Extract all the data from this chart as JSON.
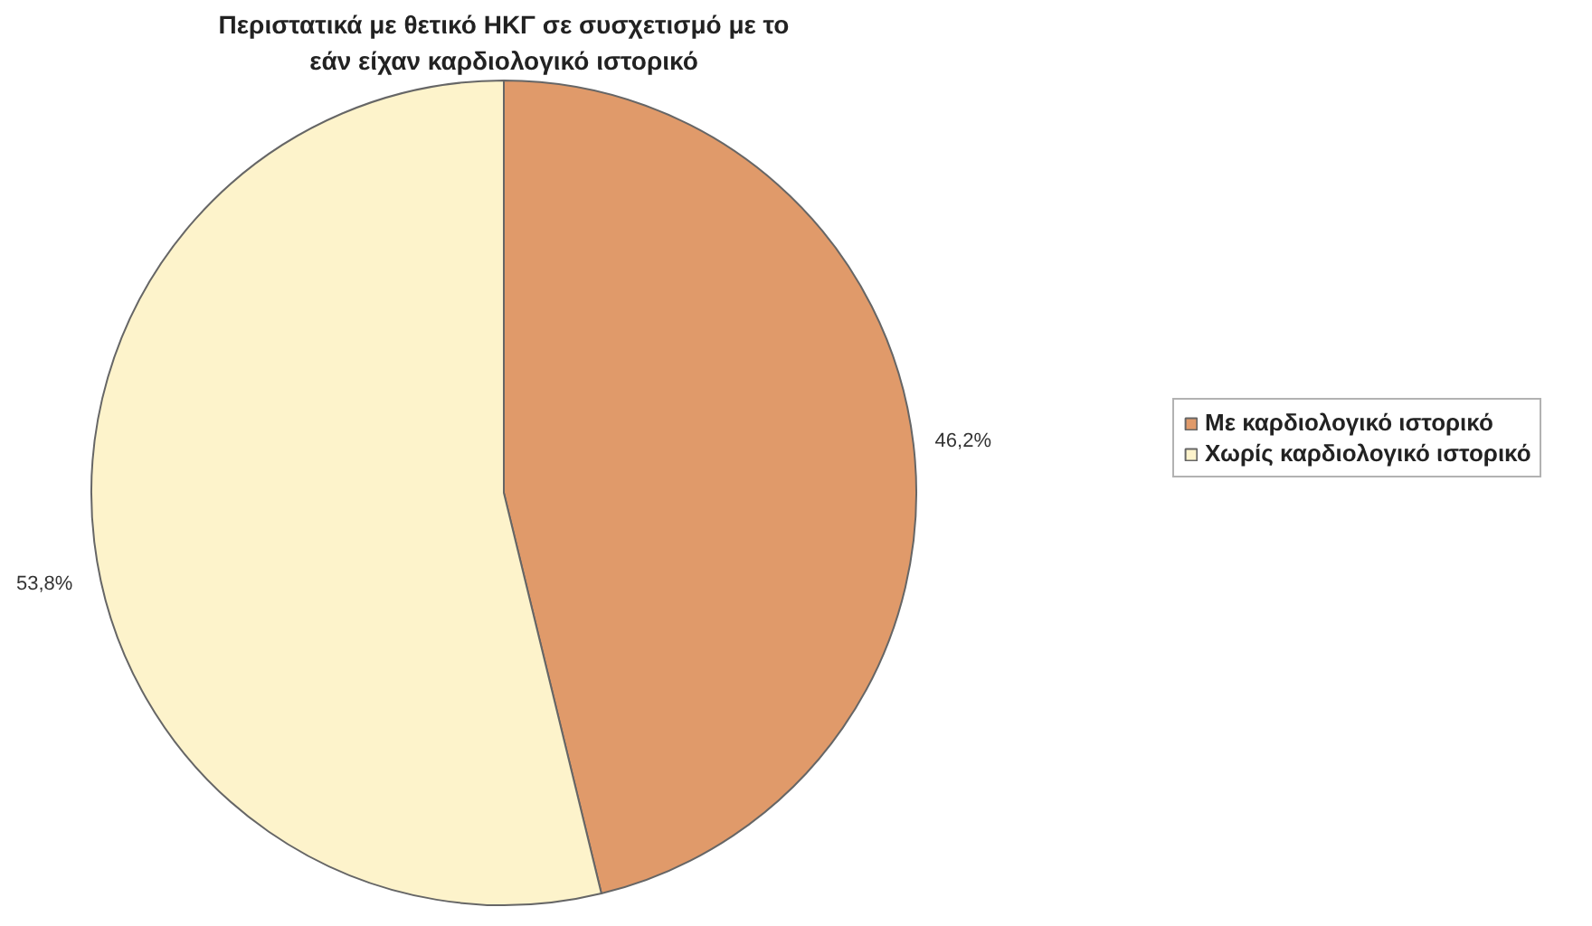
{
  "chart_data": {
    "type": "pie",
    "title": "Περιστατικά με θετικό ΗΚΓ σε συσχετισμό με το εάν είχαν καρδιολογικό ιστορικό",
    "categories": [
      "Με καρδιολογικό ιστορικό",
      "Χωρίς καρδιολογικό ιστορικό"
    ],
    "values": [
      46.2,
      53.8
    ],
    "value_labels": [
      "46,2%",
      "53,8%"
    ],
    "colors": [
      "#e09a6a",
      "#fdf3cb"
    ],
    "legend": "right"
  }
}
